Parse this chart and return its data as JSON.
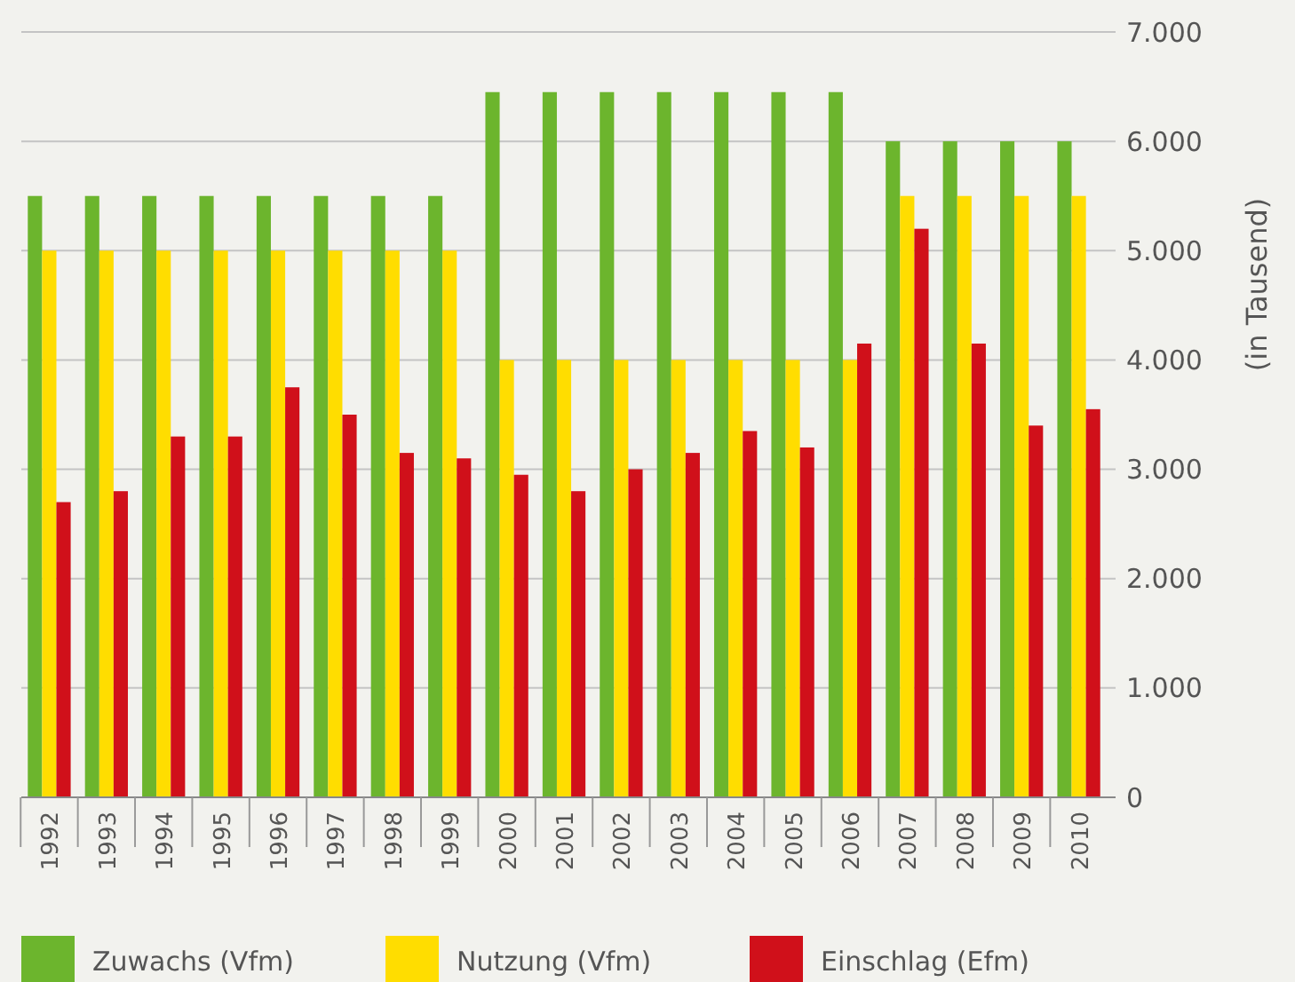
{
  "chart_data": {
    "type": "bar",
    "ylabel": "(in Tausend)",
    "categories": [
      "1992",
      "1993",
      "1994",
      "1995",
      "1996",
      "1997",
      "1998",
      "1999",
      "2000",
      "2001",
      "2002",
      "2003",
      "2004",
      "2005",
      "2006",
      "2007",
      "2008",
      "2009",
      "2010"
    ],
    "series": [
      {
        "name": "Zuwachs (Vfm)",
        "color": "#6cb52d",
        "values": [
          5500,
          5500,
          5500,
          5500,
          5500,
          5500,
          5500,
          5500,
          6450,
          6450,
          6450,
          6450,
          6450,
          6450,
          6450,
          6000,
          6000,
          6000,
          6000
        ]
      },
      {
        "name": "Nutzung (Vfm)",
        "color": "#ffdd00",
        "values": [
          5000,
          5000,
          5000,
          5000,
          5000,
          5000,
          5000,
          5000,
          4000,
          4000,
          4000,
          4000,
          4000,
          4000,
          4000,
          5500,
          5500,
          5500,
          5500
        ]
      },
      {
        "name": "Einschlag (Efm)",
        "color": "#d0101a",
        "values": [
          2700,
          2800,
          3300,
          3300,
          3750,
          3500,
          3150,
          3100,
          2950,
          2800,
          3000,
          3150,
          3350,
          3200,
          4150,
          5200,
          4150,
          3400,
          3550
        ]
      }
    ],
    "ylim": [
      0,
      7000
    ],
    "yticks": [
      {
        "value": 0,
        "label": "0"
      },
      {
        "value": 1000,
        "label": "1.000"
      },
      {
        "value": 2000,
        "label": "2.000"
      },
      {
        "value": 3000,
        "label": "3.000"
      },
      {
        "value": 4000,
        "label": "4.000"
      },
      {
        "value": 5000,
        "label": "5.000"
      },
      {
        "value": 6000,
        "label": "6.000"
      },
      {
        "value": 7000,
        "label": "7.000"
      }
    ],
    "grid": "y",
    "legend": "bottom"
  }
}
